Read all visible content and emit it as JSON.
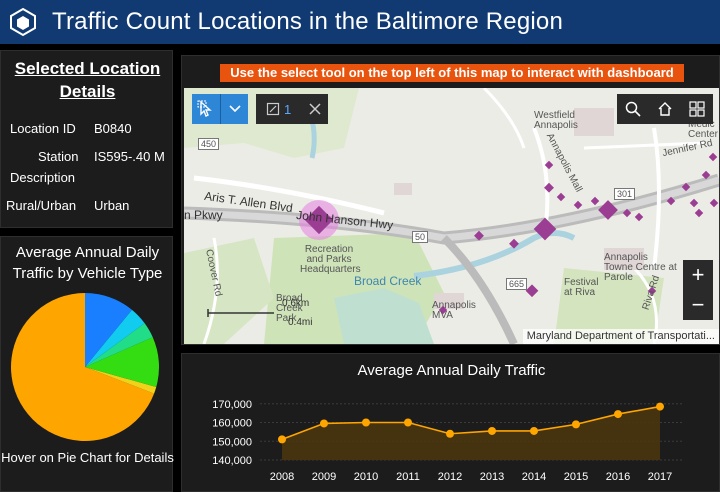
{
  "header": {
    "title": "Traffic Count Locations in the Baltimore Region"
  },
  "details": {
    "title": "Selected Location Details",
    "rows": [
      {
        "label": "Location ID",
        "value": "B0840"
      },
      {
        "label": "Station",
        "label2": "Description",
        "value": "IS595-.40 M"
      },
      {
        "label": "Rural/Urban",
        "value": "Urban"
      }
    ]
  },
  "pie": {
    "title": "Average Annual Daily Traffic by Vehicle Type",
    "footer": "Hover on Pie Chart for Details",
    "slices_percent": [
      69.5,
      1.5,
      11,
      3.5,
      4,
      11
    ],
    "slice_colors": [
      "#ffa500",
      "#f0d21a",
      "#33dd11",
      "#22dd88",
      "#11ccee",
      "#1a7fff"
    ]
  },
  "map": {
    "instruction": "Use the select tool on the top left of this map to interact with dashboard",
    "selected_count": "1",
    "attribution": "Maryland Department of Transportati...",
    "scale_km": "0.6km",
    "scale_mi": "0.4mi",
    "labels": {
      "allen_blvd": "Aris T. Allen Blvd",
      "hwy": "John Hanson Hwy",
      "pkwy": "n Pkwy",
      "rec": "Recreation and Parks Headquarters",
      "broad_creek": "Broad Creek",
      "broad_creek_park": "Broad Creek Park",
      "annapolis_mva": "Annapolis MVA",
      "westfield": "Westfield Annapolis",
      "towne": "Annapolis Towne Centre at Parole",
      "festival": "Festival at Riva",
      "annapolis_mall": "Annapolis Mall",
      "jennifer": "Jennifer Rd",
      "medic": "Medic Center",
      "coover": "Coover Rd",
      "riva": "Riva Rd",
      "r450": "450",
      "r50": "50",
      "r665": "665",
      "r301": "301"
    }
  },
  "line_chart": {
    "title": "Average Annual Daily Traffic"
  },
  "chart_data": {
    "type": "area",
    "title": "Average Annual Daily Traffic",
    "categories": [
      "2008",
      "2009",
      "2010",
      "2011",
      "2012",
      "2013",
      "2014",
      "2015",
      "2016",
      "2017"
    ],
    "values": [
      151000,
      159500,
      160000,
      160000,
      154000,
      155500,
      155500,
      159000,
      164500,
      168500
    ],
    "yticks": [
      "140,000",
      "150,000",
      "160,000",
      "170,000"
    ],
    "ylim": [
      140000,
      172000
    ],
    "color": "#ffa500",
    "grid": true
  }
}
